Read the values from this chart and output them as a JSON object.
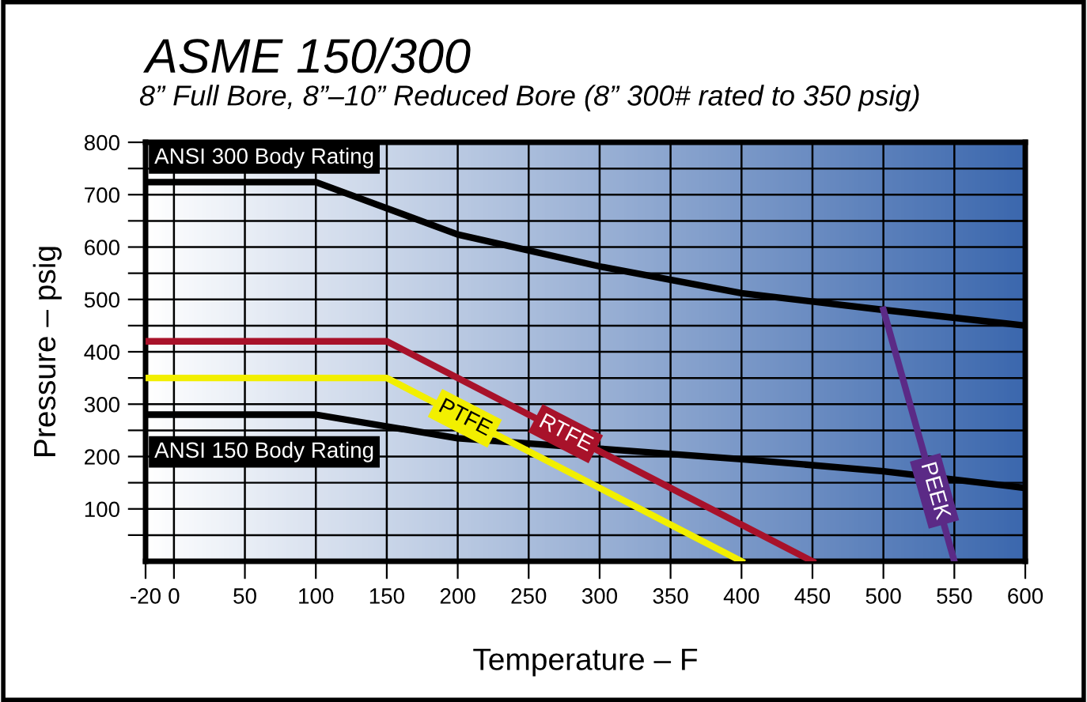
{
  "chart_data": {
    "type": "line",
    "title": "ASME 150/300",
    "subtitle": "8” Full Bore, 8”–10” Reduced Bore (8” 300# rated to 350 psig)",
    "xlabel": "Temperature – F",
    "ylabel": "Pressure – psig",
    "xlim": [
      -20,
      600
    ],
    "xticks": [
      -20,
      0,
      50,
      100,
      150,
      200,
      250,
      300,
      350,
      400,
      450,
      500,
      550,
      600
    ],
    "ylim": [
      0,
      800
    ],
    "yticks": [
      {
        "value": 50,
        "label": null
      },
      100,
      {
        "value": 150,
        "label": null
      },
      200,
      {
        "value": 250,
        "label": null
      },
      300,
      {
        "value": 350,
        "label": null
      },
      400,
      {
        "value": 450,
        "label": null
      },
      500,
      {
        "value": 550,
        "label": null
      },
      600,
      {
        "value": 650,
        "label": null
      },
      700,
      {
        "value": 750,
        "label": null
      },
      800
    ],
    "grid": true,
    "legend": false,
    "marker": "none",
    "line_style": "solid",
    "series": [
      {
        "name": "ANSI 300 Body Rating",
        "color": "#000000",
        "x": [
          -20,
          100,
          200,
          300,
          400,
          500,
          600
        ],
        "values": [
          724,
          724,
          624,
          563,
          512,
          480,
          450
        ]
      },
      {
        "name": "ANSI 150 Body Rating",
        "color": "#000000",
        "x": [
          -20,
          100,
          200,
          300,
          400,
          500,
          600
        ],
        "values": [
          280,
          280,
          235,
          215,
          195,
          172,
          140
        ]
      },
      {
        "name": "RTFE",
        "color": "#a8122a",
        "x": [
          -20,
          150,
          450
        ],
        "values": [
          420,
          420,
          0
        ]
      },
      {
        "name": "PTFE",
        "color": "#f2ef00",
        "x": [
          -20,
          150,
          400
        ],
        "values": [
          350,
          350,
          0
        ]
      },
      {
        "name": "PEEK",
        "color": "#5b2a86",
        "x": [
          500,
          550
        ],
        "values": [
          480,
          0
        ]
      }
    ]
  }
}
